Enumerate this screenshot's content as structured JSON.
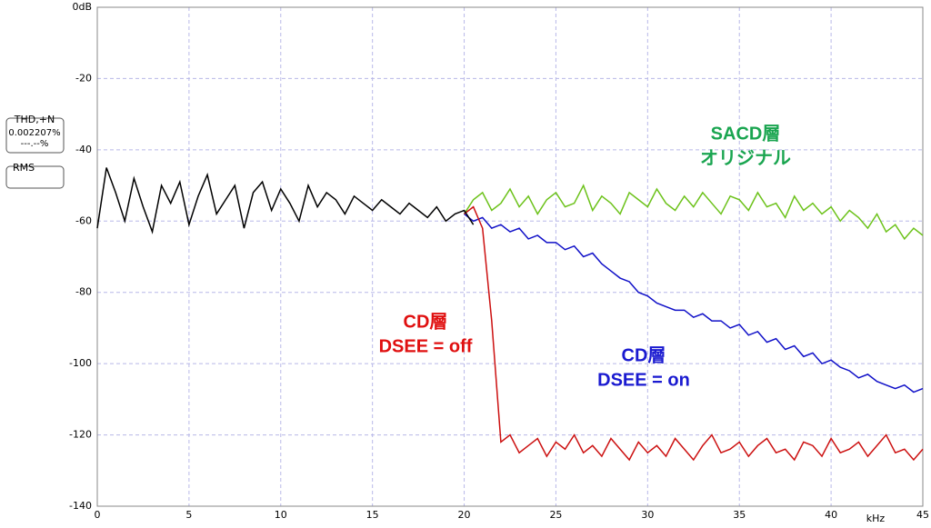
{
  "chart_data": {
    "type": "line",
    "x_label": "kHz",
    "xlim": [
      0,
      45
    ],
    "xticks": [
      0,
      5,
      10,
      15,
      20,
      25,
      30,
      35,
      40,
      45
    ],
    "ylim": [
      -140,
      0
    ],
    "yticks": [
      {
        "value": 0,
        "label": "0dB"
      },
      -20,
      -40,
      -60,
      -80,
      -100,
      -120,
      -140
    ],
    "grid": true,
    "panel": {
      "thd_label": "THD,+N",
      "thd_value": "0.002207%",
      "thd_blank": "---.--%",
      "rms_label": "RMS"
    },
    "annotations": [
      {
        "lines": [
          "SACD層",
          "オリジナル"
        ],
        "color": "#1aa550"
      },
      {
        "lines": [
          "CD層",
          "DSEE = off"
        ],
        "color": "#e01010"
      },
      {
        "lines": [
          "CD層",
          "DSEE = on"
        ],
        "color": "#1a1ad0"
      }
    ],
    "series": [
      {
        "color": "#6cc21a",
        "x": [
          20,
          20.5,
          21,
          21.5,
          22,
          22.5,
          23,
          23.5,
          24,
          24.5,
          25,
          25.5,
          26,
          26.5,
          27,
          27.5,
          28,
          28.5,
          29,
          29.5,
          30,
          30.5,
          31,
          31.5,
          32,
          32.5,
          33,
          33.5,
          34,
          34.5,
          35,
          35.5,
          36,
          36.5,
          37,
          37.5,
          38,
          38.5,
          39,
          39.5,
          40,
          40.5,
          41,
          41.5,
          42,
          42.5,
          43,
          43.5,
          44,
          44.5,
          45
        ],
        "values": [
          -58,
          -54,
          -52,
          -57,
          -55,
          -51,
          -56,
          -53,
          -58,
          -54,
          -52,
          -56,
          -55,
          -50,
          -57,
          -53,
          -55,
          -58,
          -52,
          -54,
          -56,
          -51,
          -55,
          -57,
          -53,
          -56,
          -52,
          -55,
          -58,
          -53,
          -54,
          -57,
          -52,
          -56,
          -55,
          -59,
          -53,
          -57,
          -55,
          -58,
          -56,
          -60,
          -57,
          -59,
          -62,
          -58,
          -63,
          -61,
          -65,
          -62,
          -64
        ]
      },
      {
        "color": "#1010c8",
        "x": [
          20,
          20.5,
          21,
          21.5,
          22,
          22.5,
          23,
          23.5,
          24,
          24.5,
          25,
          25.5,
          26,
          26.5,
          27,
          27.5,
          28,
          28.5,
          29,
          29.5,
          30,
          30.5,
          31,
          31.5,
          32,
          32.5,
          33,
          33.5,
          34,
          34.5,
          35,
          35.5,
          36,
          36.5,
          37,
          37.5,
          38,
          38.5,
          39,
          39.5,
          40,
          40.5,
          41,
          41.5,
          42,
          42.5,
          43,
          43.5,
          44,
          44.5,
          45
        ],
        "values": [
          -58,
          -60,
          -59,
          -62,
          -61,
          -63,
          -62,
          -65,
          -64,
          -66,
          -66,
          -68,
          -67,
          -70,
          -69,
          -72,
          -74,
          -76,
          -77,
          -80,
          -81,
          -83,
          -84,
          -85,
          -85,
          -87,
          -86,
          -88,
          -88,
          -90,
          -89,
          -92,
          -91,
          -94,
          -93,
          -96,
          -95,
          -98,
          -97,
          -100,
          -99,
          -101,
          -102,
          -104,
          -103,
          -105,
          -106,
          -107,
          -106,
          -108,
          -107
        ]
      },
      {
        "color": "#cc1010",
        "x": [
          20,
          20.5,
          21,
          21.5,
          22,
          22.5,
          23,
          23.5,
          24,
          24.5,
          25,
          25.5,
          26,
          26.5,
          27,
          27.5,
          28,
          28.5,
          29,
          29.5,
          30,
          30.5,
          31,
          31.5,
          32,
          32.5,
          33,
          33.5,
          34,
          34.5,
          35,
          35.5,
          36,
          36.5,
          37,
          37.5,
          38,
          38.5,
          39,
          39.5,
          40,
          40.5,
          41,
          41.5,
          42,
          42.5,
          43,
          43.5,
          44,
          44.5,
          45
        ],
        "values": [
          -58,
          -56,
          -62,
          -88,
          -122,
          -120,
          -125,
          -123,
          -121,
          -126,
          -122,
          -124,
          -120,
          -125,
          -123,
          -126,
          -121,
          -124,
          -127,
          -122,
          -125,
          -123,
          -126,
          -121,
          -124,
          -127,
          -123,
          -120,
          -125,
          -124,
          -122,
          -126,
          -123,
          -121,
          -125,
          -124,
          -127,
          -122,
          -123,
          -126,
          -121,
          -125,
          -124,
          -122,
          -126,
          -123,
          -120,
          -125,
          -124,
          -127,
          -124
        ]
      },
      {
        "color": "#000000",
        "x": [
          0,
          0.5,
          1,
          1.5,
          2,
          2.5,
          3,
          3.5,
          4,
          4.5,
          5,
          5.5,
          6,
          6.5,
          7,
          7.5,
          8,
          8.5,
          9,
          9.5,
          10,
          10.5,
          11,
          11.5,
          12,
          12.5,
          13,
          13.5,
          14,
          14.5,
          15,
          15.5,
          16,
          16.5,
          17,
          17.5,
          18,
          18.5,
          19,
          19.5,
          20,
          20.5
        ],
        "values": [
          -62,
          -45,
          -52,
          -60,
          -48,
          -56,
          -63,
          -50,
          -55,
          -49,
          -61,
          -53,
          -47,
          -58,
          -54,
          -50,
          -62,
          -52,
          -49,
          -57,
          -51,
          -55,
          -60,
          -50,
          -56,
          -52,
          -54,
          -58,
          -53,
          -55,
          -57,
          -54,
          -56,
          -58,
          -55,
          -57,
          -59,
          -56,
          -60,
          -58,
          -57,
          -61
        ]
      }
    ]
  }
}
